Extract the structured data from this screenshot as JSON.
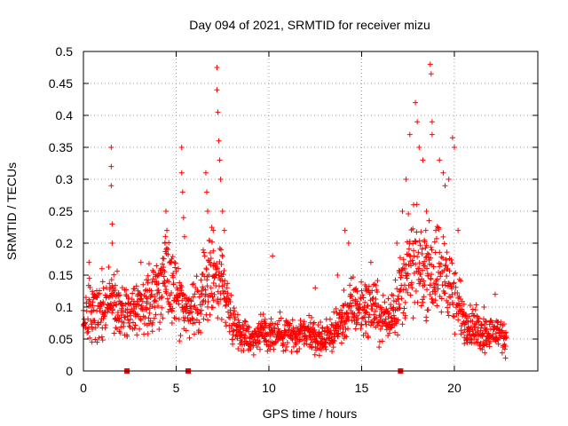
{
  "chart_data": {
    "type": "scatter",
    "title": "Day 094 of 2021, SRMTID for receiver mizu",
    "xlabel": "GPS time / hours",
    "ylabel": "SRMTID / TECUs",
    "xlim": [
      0,
      24.5
    ],
    "ylim": [
      0,
      0.5
    ],
    "xticks": [
      0,
      5,
      10,
      15,
      20
    ],
    "yticks": [
      0,
      0.05,
      0.1,
      0.15,
      0.2,
      0.25,
      0.3,
      0.35,
      0.4,
      0.45,
      0.5
    ],
    "grid": true,
    "marker": "+",
    "series_color": "#ff0000",
    "baseline_markers_x": [
      2.35,
      5.65,
      17.1
    ],
    "envelope": [
      {
        "x": 0.0,
        "y": 0.08
      },
      {
        "x": 0.5,
        "y": 0.1
      },
      {
        "x": 1.0,
        "y": 0.09
      },
      {
        "x": 1.5,
        "y": 0.12
      },
      {
        "x": 2.0,
        "y": 0.1
      },
      {
        "x": 2.5,
        "y": 0.09
      },
      {
        "x": 3.0,
        "y": 0.1
      },
      {
        "x": 3.5,
        "y": 0.11
      },
      {
        "x": 4.0,
        "y": 0.12
      },
      {
        "x": 4.5,
        "y": 0.16
      },
      {
        "x": 5.0,
        "y": 0.13
      },
      {
        "x": 5.5,
        "y": 0.1
      },
      {
        "x": 6.0,
        "y": 0.09
      },
      {
        "x": 6.5,
        "y": 0.13
      },
      {
        "x": 7.0,
        "y": 0.15
      },
      {
        "x": 7.5,
        "y": 0.14
      },
      {
        "x": 8.0,
        "y": 0.08
      },
      {
        "x": 8.5,
        "y": 0.06
      },
      {
        "x": 9.0,
        "y": 0.05
      },
      {
        "x": 9.5,
        "y": 0.06
      },
      {
        "x": 10.0,
        "y": 0.06
      },
      {
        "x": 10.5,
        "y": 0.06
      },
      {
        "x": 11.0,
        "y": 0.06
      },
      {
        "x": 11.5,
        "y": 0.05
      },
      {
        "x": 12.0,
        "y": 0.06
      },
      {
        "x": 12.5,
        "y": 0.05
      },
      {
        "x": 13.0,
        "y": 0.05
      },
      {
        "x": 13.5,
        "y": 0.06
      },
      {
        "x": 14.0,
        "y": 0.08
      },
      {
        "x": 14.5,
        "y": 0.1
      },
      {
        "x": 15.0,
        "y": 0.1
      },
      {
        "x": 15.5,
        "y": 0.1
      },
      {
        "x": 16.0,
        "y": 0.09
      },
      {
        "x": 16.5,
        "y": 0.08
      },
      {
        "x": 17.0,
        "y": 0.12
      },
      {
        "x": 17.5,
        "y": 0.16
      },
      {
        "x": 18.0,
        "y": 0.17
      },
      {
        "x": 18.5,
        "y": 0.16
      },
      {
        "x": 19.0,
        "y": 0.15
      },
      {
        "x": 19.5,
        "y": 0.16
      },
      {
        "x": 20.0,
        "y": 0.12
      },
      {
        "x": 20.5,
        "y": 0.08
      },
      {
        "x": 21.0,
        "y": 0.07
      },
      {
        "x": 21.5,
        "y": 0.06
      },
      {
        "x": 22.0,
        "y": 0.06
      },
      {
        "x": 22.5,
        "y": 0.06
      },
      {
        "x": 22.8,
        "y": 0.05
      }
    ],
    "spikes": [
      {
        "x": 1.5,
        "y": 0.35
      },
      {
        "x": 1.5,
        "y": 0.32
      },
      {
        "x": 1.5,
        "y": 0.29
      },
      {
        "x": 1.55,
        "y": 0.23
      },
      {
        "x": 1.55,
        "y": 0.2
      },
      {
        "x": 1.0,
        "y": 0.16
      },
      {
        "x": 0.3,
        "y": 0.17
      },
      {
        "x": 3.1,
        "y": 0.17
      },
      {
        "x": 4.45,
        "y": 0.25
      },
      {
        "x": 4.5,
        "y": 0.22
      },
      {
        "x": 4.4,
        "y": 0.2
      },
      {
        "x": 5.3,
        "y": 0.35
      },
      {
        "x": 5.3,
        "y": 0.31
      },
      {
        "x": 5.35,
        "y": 0.28
      },
      {
        "x": 5.4,
        "y": 0.24
      },
      {
        "x": 5.45,
        "y": 0.21
      },
      {
        "x": 7.2,
        "y": 0.475
      },
      {
        "x": 7.2,
        "y": 0.44
      },
      {
        "x": 7.25,
        "y": 0.405
      },
      {
        "x": 7.3,
        "y": 0.36
      },
      {
        "x": 7.35,
        "y": 0.33
      },
      {
        "x": 7.4,
        "y": 0.3
      },
      {
        "x": 6.6,
        "y": 0.31
      },
      {
        "x": 6.65,
        "y": 0.28
      },
      {
        "x": 6.7,
        "y": 0.25
      },
      {
        "x": 7.5,
        "y": 0.25
      },
      {
        "x": 7.6,
        "y": 0.22
      },
      {
        "x": 7.0,
        "y": 0.22
      },
      {
        "x": 10.2,
        "y": 0.18
      },
      {
        "x": 12.5,
        "y": 0.13
      },
      {
        "x": 13.7,
        "y": 0.15
      },
      {
        "x": 14.1,
        "y": 0.22
      },
      {
        "x": 14.3,
        "y": 0.2
      },
      {
        "x": 15.5,
        "y": 0.17
      },
      {
        "x": 16.9,
        "y": 0.2
      },
      {
        "x": 17.2,
        "y": 0.25
      },
      {
        "x": 17.4,
        "y": 0.3
      },
      {
        "x": 17.6,
        "y": 0.37
      },
      {
        "x": 17.9,
        "y": 0.42
      },
      {
        "x": 18.0,
        "y": 0.39
      },
      {
        "x": 18.1,
        "y": 0.35
      },
      {
        "x": 18.3,
        "y": 0.33
      },
      {
        "x": 18.7,
        "y": 0.48
      },
      {
        "x": 18.75,
        "y": 0.465
      },
      {
        "x": 18.8,
        "y": 0.39
      },
      {
        "x": 18.8,
        "y": 0.37
      },
      {
        "x": 19.2,
        "y": 0.33
      },
      {
        "x": 19.4,
        "y": 0.31
      },
      {
        "x": 19.5,
        "y": 0.29
      },
      {
        "x": 19.9,
        "y": 0.365
      },
      {
        "x": 20.0,
        "y": 0.35
      },
      {
        "x": 19.7,
        "y": 0.3
      },
      {
        "x": 18.5,
        "y": 0.25
      },
      {
        "x": 17.8,
        "y": 0.26
      },
      {
        "x": 20.2,
        "y": 0.22
      },
      {
        "x": 19.0,
        "y": 0.22
      },
      {
        "x": 22.2,
        "y": 0.12
      },
      {
        "x": 21.6,
        "y": 0.1
      }
    ]
  }
}
